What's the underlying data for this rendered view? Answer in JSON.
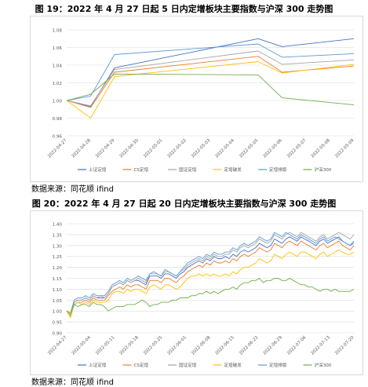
{
  "figure1": {
    "title": "图 19：2022 年 4 月 27 日起 5 日内定增板块主要指数与沪深 300 走势图",
    "source": "数据来源：同花顺 ifind"
  },
  "figure2": {
    "title": "图 20：2022 年 4 月 27 日起 20 日内定增板块主要指数与沪深 300 走势图",
    "source": "数据来源：同花顺 ifind"
  },
  "chart_data": [
    {
      "type": "line",
      "title": "图 19：2022 年 4 月 27 日起 5 日内定增板块主要指数与沪深 300 走势图",
      "x": [
        "2022-04-27",
        "2022-04-28",
        "2022-04-29",
        "2022-04-30",
        "2022-05-01",
        "2022-05-02",
        "2022-05-03",
        "2022-05-04",
        "2022-05-05",
        "2022-05-06",
        "2022-05-07",
        "2022-05-08",
        "2022-05-09"
      ],
      "ylim": [
        0.96,
        1.08
      ],
      "yticks": [
        "0.96",
        "0.98",
        "1.00",
        "1.02",
        "1.04",
        "1.06",
        "1.08"
      ],
      "grid": true,
      "legend": "bottom",
      "series": [
        {
          "name": "上证定增",
          "color": "#4472c4",
          "values": [
            1.0,
            0.993,
            1.037,
            null,
            null,
            null,
            null,
            null,
            1.07,
            1.061,
            null,
            null,
            1.07
          ]
        },
        {
          "name": "CS定增",
          "color": "#ed7d31",
          "values": [
            1.0,
            0.992,
            1.032,
            null,
            null,
            null,
            null,
            null,
            1.05,
            1.032,
            null,
            null,
            1.039
          ]
        },
        {
          "name": "国证定增",
          "color": "#a5a5a5",
          "values": [
            1.0,
            0.994,
            1.035,
            null,
            null,
            null,
            null,
            null,
            1.056,
            1.041,
            null,
            null,
            1.046
          ]
        },
        {
          "name": "定增破发",
          "color": "#ffc000",
          "values": [
            1.0,
            0.98,
            1.027,
            null,
            null,
            null,
            null,
            null,
            1.044,
            1.031,
            null,
            null,
            1.041
          ]
        },
        {
          "name": "定增排版",
          "color": "#5b9bd5",
          "values": [
            1.0,
            1.005,
            1.052,
            null,
            null,
            null,
            null,
            null,
            1.064,
            1.049,
            null,
            null,
            1.053
          ]
        },
        {
          "name": "沪深300",
          "color": "#70ad47",
          "values": [
            1.0,
            1.007,
            1.03,
            null,
            null,
            null,
            null,
            null,
            1.029,
            1.003,
            null,
            null,
            0.995
          ]
        }
      ]
    },
    {
      "type": "line",
      "title": "图 20：2022 年 4 月 27 日起 20 日内定增板块主要指数与沪深 300 走势图",
      "x_tick_labels": [
        "2022-04-27",
        "2022-05-04",
        "2022-05-11",
        "2022-05-18",
        "2022-05-25",
        "2022-06-01",
        "2022-06-08",
        "2022-06-15",
        "2022-06-22",
        "2022-06-29",
        "2022-07-06",
        "2022-07-13",
        "2022-07-20"
      ],
      "ylim": [
        0.9,
        1.4
      ],
      "yticks": [
        "0.90",
        "0.95",
        "1.00",
        "1.05",
        "1.10",
        "1.15",
        "1.20",
        "1.25",
        "1.30",
        "1.35",
        "1.40"
      ],
      "grid": true,
      "legend": "bottom",
      "series": [
        {
          "name": "上证定增",
          "color": "#4472c4",
          "values": [
            1.0,
            0.98,
            1.04,
            1.05,
            1.05,
            1.06,
            1.05,
            1.07,
            1.06,
            1.06,
            1.06,
            1.08,
            1.11,
            1.12,
            1.13,
            1.12,
            1.14,
            1.13,
            1.14,
            1.14,
            1.13,
            1.12,
            1.16,
            1.16,
            1.16,
            1.15,
            1.17,
            1.17,
            1.16,
            1.15,
            1.17,
            1.18,
            1.2,
            1.21,
            1.22,
            1.23,
            1.22,
            1.24,
            1.23,
            1.25,
            1.24,
            1.24,
            1.25,
            1.24,
            1.26,
            1.25,
            1.27,
            1.28,
            1.27,
            1.28,
            1.29,
            1.31,
            1.3,
            1.29,
            1.3,
            1.33,
            1.32,
            1.31,
            1.33,
            1.34,
            1.33,
            1.32,
            1.34,
            1.33,
            1.32,
            1.31,
            1.3,
            1.32,
            1.33,
            1.31,
            1.32,
            1.33,
            1.34,
            1.32,
            1.31,
            1.3,
            1.32
          ]
        },
        {
          "name": "CS定增",
          "color": "#ed7d31",
          "values": [
            1.0,
            0.97,
            1.03,
            1.04,
            1.04,
            1.05,
            1.04,
            1.06,
            1.05,
            1.05,
            1.05,
            1.07,
            1.09,
            1.1,
            1.11,
            1.1,
            1.12,
            1.11,
            1.12,
            1.12,
            1.11,
            1.1,
            1.14,
            1.14,
            1.14,
            1.13,
            1.15,
            1.15,
            1.14,
            1.13,
            1.15,
            1.16,
            1.18,
            1.19,
            1.2,
            1.21,
            1.2,
            1.22,
            1.21,
            1.23,
            1.22,
            1.22,
            1.23,
            1.22,
            1.24,
            1.23,
            1.25,
            1.26,
            1.25,
            1.26,
            1.27,
            1.29,
            1.28,
            1.27,
            1.28,
            1.31,
            1.3,
            1.29,
            1.31,
            1.32,
            1.31,
            1.3,
            1.32,
            1.31,
            1.3,
            1.29,
            1.28,
            1.3,
            1.31,
            1.29,
            1.3,
            1.31,
            1.32,
            1.3,
            1.29,
            1.28,
            1.3
          ]
        },
        {
          "name": "国证定增",
          "color": "#a5a5a5",
          "values": [
            1.0,
            0.98,
            1.04,
            1.05,
            1.05,
            1.06,
            1.05,
            1.07,
            1.06,
            1.07,
            1.06,
            1.08,
            1.11,
            1.12,
            1.13,
            1.12,
            1.14,
            1.13,
            1.14,
            1.15,
            1.14,
            1.13,
            1.17,
            1.17,
            1.17,
            1.16,
            1.18,
            1.18,
            1.17,
            1.16,
            1.18,
            1.19,
            1.21,
            1.22,
            1.23,
            1.24,
            1.23,
            1.25,
            1.24,
            1.26,
            1.25,
            1.25,
            1.26,
            1.26,
            1.28,
            1.27,
            1.29,
            1.3,
            1.29,
            1.3,
            1.31,
            1.33,
            1.32,
            1.31,
            1.32,
            1.35,
            1.34,
            1.33,
            1.35,
            1.36,
            1.35,
            1.34,
            1.36,
            1.35,
            1.34,
            1.33,
            1.32,
            1.34,
            1.35,
            1.33,
            1.34,
            1.35,
            1.36,
            1.35,
            1.34,
            1.33,
            1.35
          ]
        },
        {
          "name": "定增破发",
          "color": "#ffc000",
          "values": [
            1.0,
            0.97,
            1.03,
            1.04,
            1.03,
            1.04,
            1.03,
            1.05,
            1.04,
            1.04,
            1.04,
            1.05,
            1.08,
            1.09,
            1.09,
            1.08,
            1.1,
            1.09,
            1.1,
            1.1,
            1.09,
            1.08,
            1.11,
            1.12,
            1.11,
            1.1,
            1.12,
            1.12,
            1.11,
            1.1,
            1.11,
            1.13,
            1.15,
            1.16,
            1.16,
            1.17,
            1.16,
            1.17,
            1.16,
            1.17,
            1.16,
            1.16,
            1.17,
            1.16,
            1.18,
            1.17,
            1.19,
            1.2,
            1.2,
            1.21,
            1.22,
            1.24,
            1.23,
            1.22,
            1.23,
            1.26,
            1.25,
            1.24,
            1.26,
            1.27,
            1.26,
            1.25,
            1.27,
            1.27,
            1.26,
            1.25,
            1.24,
            1.26,
            1.27,
            1.25,
            1.26,
            1.27,
            1.28,
            1.27,
            1.26,
            1.26,
            1.27
          ]
        },
        {
          "name": "定增排版",
          "color": "#5b9bd5",
          "values": [
            1.0,
            0.99,
            1.05,
            1.06,
            1.06,
            1.07,
            1.06,
            1.08,
            1.07,
            1.07,
            1.07,
            1.09,
            1.12,
            1.13,
            1.14,
            1.13,
            1.15,
            1.14,
            1.15,
            1.16,
            1.15,
            1.14,
            1.17,
            1.18,
            1.17,
            1.16,
            1.19,
            1.18,
            1.17,
            1.16,
            1.18,
            1.2,
            1.22,
            1.23,
            1.24,
            1.25,
            1.24,
            1.26,
            1.25,
            1.27,
            1.26,
            1.26,
            1.27,
            1.27,
            1.29,
            1.28,
            1.3,
            1.31,
            1.3,
            1.31,
            1.32,
            1.34,
            1.33,
            1.32,
            1.33,
            1.36,
            1.35,
            1.34,
            1.36,
            1.35,
            1.34,
            1.33,
            1.35,
            1.34,
            1.33,
            1.32,
            1.31,
            1.33,
            1.34,
            1.32,
            1.33,
            1.34,
            1.33,
            1.32,
            1.31,
            1.3,
            1.31
          ]
        },
        {
          "name": "沪深300",
          "color": "#70ad47",
          "values": [
            1.0,
            0.99,
            1.03,
            1.02,
            1.03,
            1.03,
            1.02,
            1.04,
            1.03,
            1.03,
            1.02,
            1.0,
            1.01,
            1.02,
            1.02,
            1.02,
            1.03,
            1.03,
            1.03,
            1.04,
            1.05,
            1.04,
            1.02,
            1.03,
            1.03,
            1.04,
            1.04,
            1.04,
            1.05,
            1.05,
            1.06,
            1.06,
            1.06,
            1.07,
            1.07,
            1.08,
            1.08,
            1.09,
            1.08,
            1.09,
            1.08,
            1.09,
            1.1,
            1.1,
            1.11,
            1.1,
            1.12,
            1.13,
            1.13,
            1.14,
            1.14,
            1.15,
            1.13,
            1.14,
            1.14,
            1.15,
            1.15,
            1.14,
            1.14,
            1.15,
            1.14,
            1.13,
            1.12,
            1.12,
            1.11,
            1.11,
            1.1,
            1.09,
            1.1,
            1.1,
            1.09,
            1.1,
            1.09,
            1.09,
            1.09,
            1.09,
            1.1
          ]
        }
      ]
    }
  ]
}
